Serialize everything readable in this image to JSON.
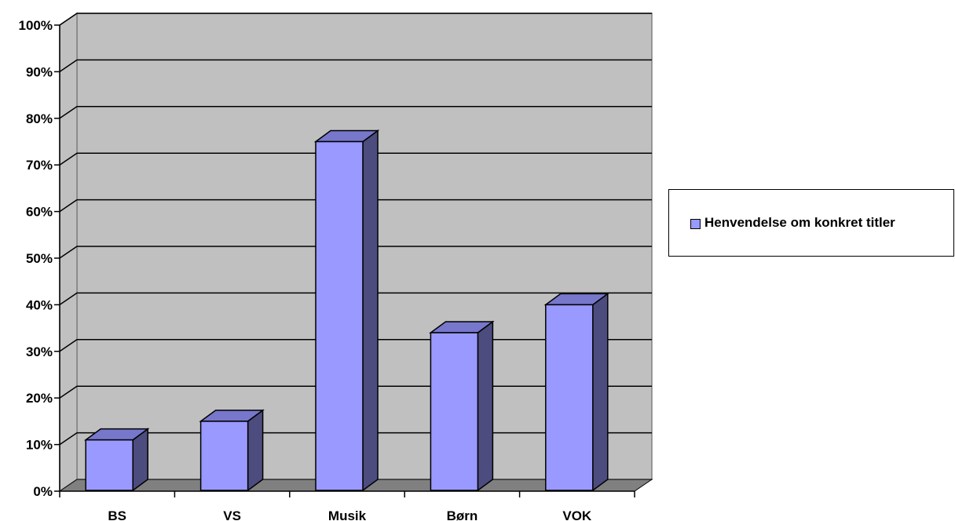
{
  "chart_data": {
    "type": "bar",
    "categories": [
      "BS",
      "VS",
      "Musik",
      "Børn",
      "VOK"
    ],
    "series": [
      {
        "name": "Henvendelse om konkret titler",
        "values": [
          11,
          15,
          75,
          34,
          40
        ]
      }
    ],
    "title": "",
    "xlabel": "",
    "ylabel": "",
    "ylim": [
      0,
      100
    ],
    "y_ticks": [
      "0%",
      "10%",
      "20%",
      "30%",
      "40%",
      "50%",
      "60%",
      "70%",
      "80%",
      "90%",
      "100%"
    ],
    "grid": true,
    "style": "3d-column",
    "legend_position": "right",
    "colors": {
      "bar_front": "#9999ff",
      "bar_top": "#7777cc",
      "bar_side": "#4c4c7f",
      "wall": "#c0c0c0",
      "floor": "#808080"
    }
  },
  "legend": {
    "label": "Henvendelse om konkret titler"
  }
}
